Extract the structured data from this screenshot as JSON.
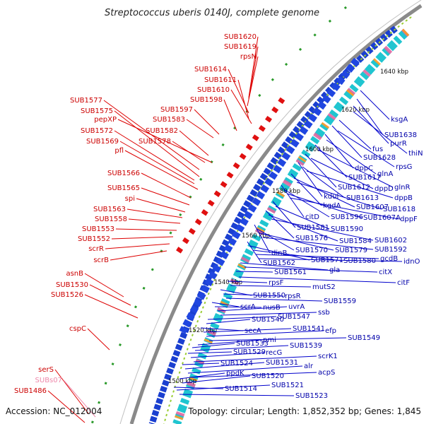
{
  "title": "Streptococcus uberis 0140J, complete genome",
  "footer": {
    "accession": "Accession: NC_012004",
    "topology": "Topology: circular; Length: 1,852,352 bp; Genes: 1,845"
  },
  "kbp_labels": [
    "1640 kbp",
    "1620 kbp",
    "1600 kbp",
    "1580 kbp",
    "1560 kbp",
    "1540 kbp",
    "1520 kbp",
    "1500 kbp"
  ],
  "left_labels": [
    "SUB1620",
    "SUB1619",
    "rpsN",
    "SUB1614",
    "SUB1611",
    "SUB1610",
    "SUB1598",
    "SUB1577",
    "SUB1597",
    "SUB1575",
    "pepXP",
    "SUB1583",
    "SUB1572",
    "SUB1582",
    "SUB1569",
    "SUB1578",
    "pfl",
    "SUB1566",
    "SUB1565",
    "spi",
    "SUB1563",
    "SUB1558",
    "SUB1553",
    "SUB1552",
    "scrR",
    "scrB",
    "asnB",
    "SUB1530",
    "SUB1526",
    "cspC",
    "serS",
    "SUBs07",
    "SUB1486"
  ],
  "right_labels": [
    "ksgA",
    "SUB1638",
    "purR",
    "thiN",
    "fus",
    "SUB1628",
    "rpsG",
    "dppC",
    "glnA",
    "SUB1617",
    "glnR",
    "SUB1612",
    "dppD",
    "kdul",
    "SUB1613",
    "dppB",
    "kgdA",
    "SUB1607",
    "SUB1618",
    "citD",
    "SUB1596",
    "SUB1607A",
    "dppF",
    "SUB1581",
    "SUB1590",
    "SUB1576",
    "SUB1584",
    "SUB1602",
    "dinB",
    "SUB1570",
    "SUB1579",
    "SUB1592",
    "SUB1562",
    "SUB1571",
    "SUB1580",
    "gcdB",
    "idnO",
    "gla",
    "citX",
    "SUB1561",
    "citF",
    "rpsF",
    "mutS2",
    "SUB1550",
    "rpsR",
    "SUB1559",
    "scrA",
    "nusB",
    "uvrA",
    "ssb",
    "SUB1547",
    "SUB1540",
    "secA",
    "SUB1541",
    "efp",
    "SUB1549",
    "pmi",
    "SUB1533",
    "SUB1539",
    "SUB1529",
    "recG",
    "scrK1",
    "SUB1524",
    "SUB1531",
    "alr",
    "acpS",
    "ppdK",
    "SUB1520",
    "SUB1514",
    "SUB1521",
    "SUB1523"
  ]
}
